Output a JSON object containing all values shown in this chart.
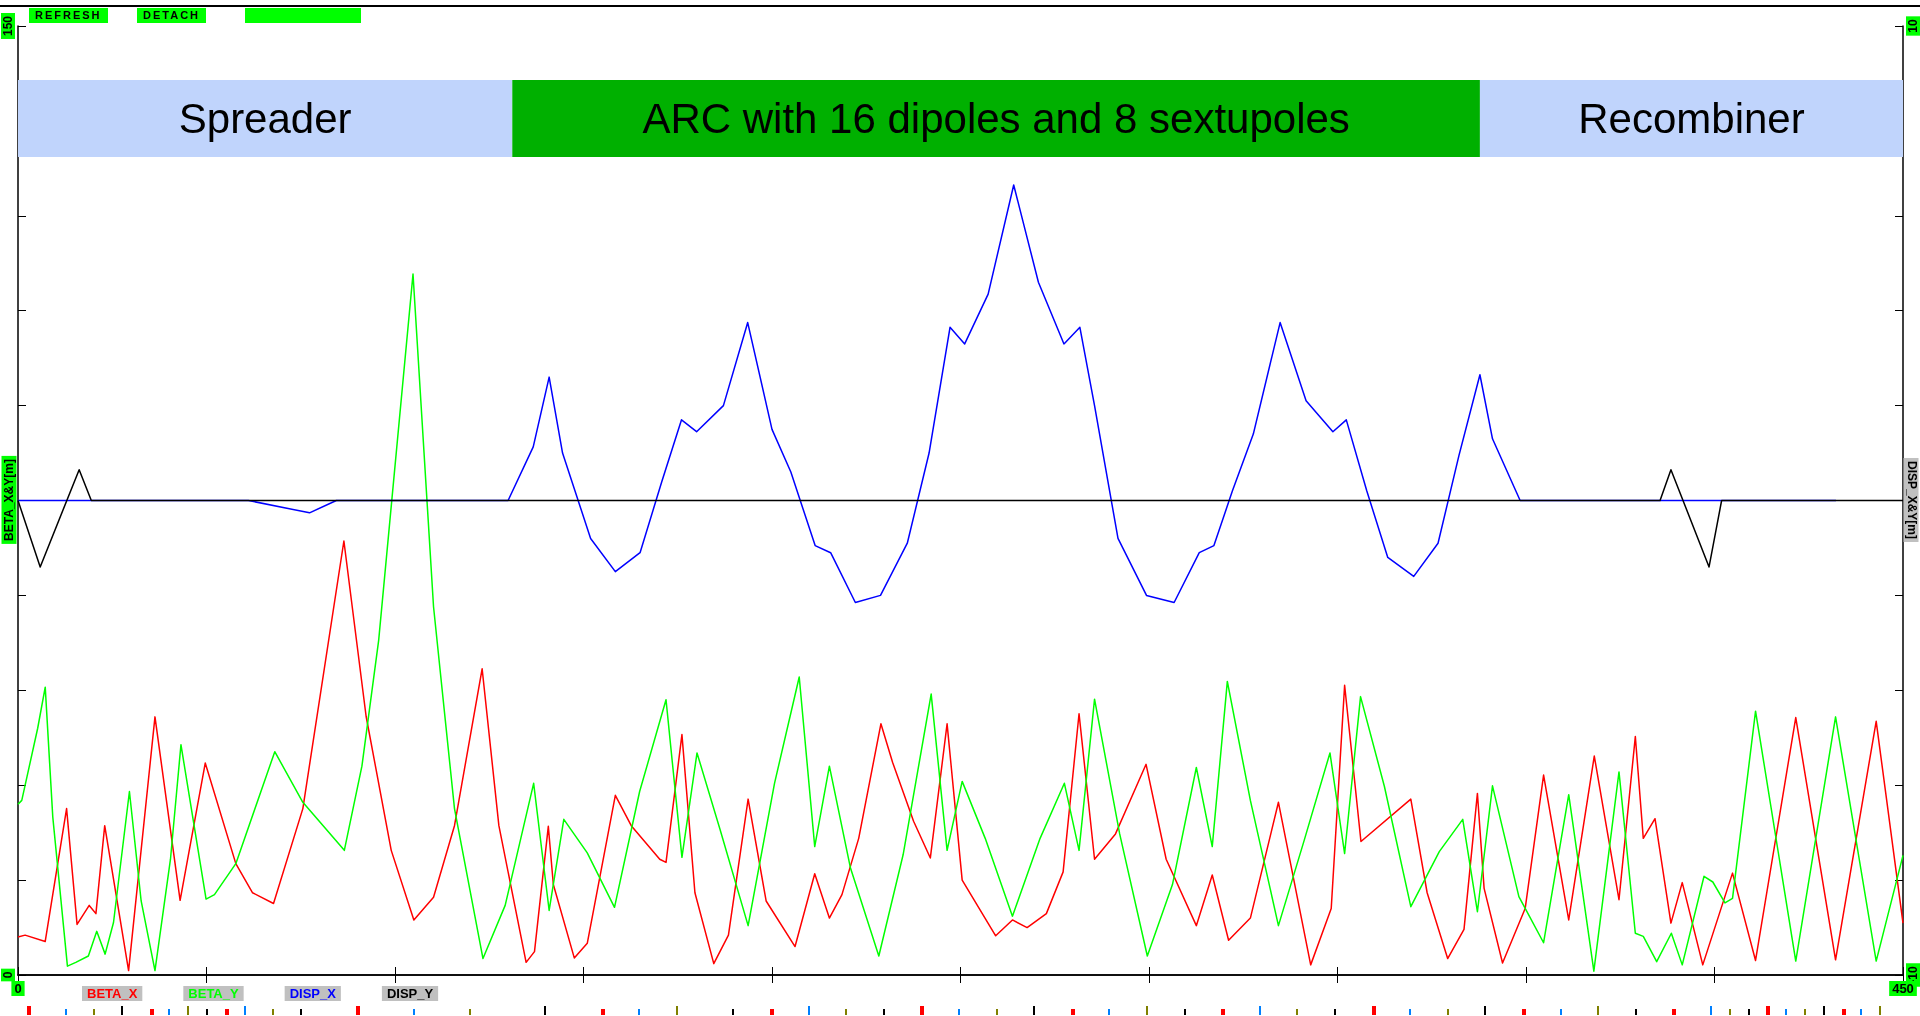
{
  "chart_data": {
    "type": "line",
    "ylabel": "BETA_X&Y[m]",
    "y2label": "DISP_X&Y[m]",
    "annotations": [
      "REFRESH",
      "DETACH"
    ],
    "xlim": [
      0,
      450
    ],
    "xticks": [
      0,
      {
        "value": 45,
        "label": null
      },
      {
        "value": 90,
        "label": null
      },
      {
        "value": 135,
        "label": null
      },
      {
        "value": 180,
        "label": null
      },
      {
        "value": 225,
        "label": null
      },
      {
        "value": 270,
        "label": null
      },
      {
        "value": 315,
        "label": null
      },
      {
        "value": 360,
        "label": null
      },
      {
        "value": 405,
        "label": null
      },
      450
    ],
    "ylim": [
      0,
      150
    ],
    "yticks": [
      0,
      {
        "value": 15,
        "label": null
      },
      {
        "value": 30,
        "label": null
      },
      {
        "value": 45,
        "label": null
      },
      {
        "value": 60,
        "label": null
      },
      {
        "value": 75,
        "label": null
      },
      {
        "value": 90,
        "label": null
      },
      {
        "value": 105,
        "label": null
      },
      {
        "value": 120,
        "label": null
      },
      {
        "value": 135,
        "label": null
      },
      150
    ],
    "y2lim": [
      -10,
      10
    ],
    "y2ticks": [
      -10,
      {
        "value": -8,
        "label": null
      },
      {
        "value": -6,
        "label": null
      },
      {
        "value": -4,
        "label": null
      },
      {
        "value": -2,
        "label": null
      },
      {
        "value": 0,
        "label": null
      },
      {
        "value": 2,
        "label": null
      },
      {
        "value": 4,
        "label": null
      },
      {
        "value": 6,
        "label": null
      },
      {
        "value": 8,
        "label": null
      },
      10
    ],
    "grid": false,
    "legend": "bottom left",
    "marker": "none",
    "line_style": "solid",
    "bands": [
      {
        "axis": "x",
        "from": 0,
        "to": 118,
        "label": "Spreader",
        "color": "#c0d4fc"
      },
      {
        "axis": "x",
        "from": 118,
        "to": 349,
        "label": "ARC with 16 dipoles and 8 sextupoles",
        "color": "#00b000"
      },
      {
        "axis": "x",
        "from": 349,
        "to": 450,
        "label": "Recombiner",
        "color": "#c0d4fc"
      }
    ],
    "series": [
      {
        "name": "BETA_X",
        "color": "#ff0000",
        "x": [
          0,
          1.7,
          6.5,
          11.6,
          14.1,
          17,
          18.6,
          20.7,
          26.4,
          32.7,
          38.7,
          44.7,
          52,
          56,
          61,
          68,
          77.8,
          83.1,
          89.1,
          94.5,
          99.2,
          104.2,
          110.8,
          114.8,
          121.3,
          123.3,
          126.6,
          127.8,
          132.8,
          135.9,
          142.6,
          146.4,
          153.2,
          154.7,
          158.5,
          161.6,
          166.1,
          169.6,
          174.3,
          178.6,
          185.5,
          190.2,
          193.7,
          196.7,
          200.7,
          206,
          208.8,
          213.8,
          217.8,
          221.8,
          225.4,
          233.4,
          237.4,
          240.9,
          245.5,
          249.5,
          253.3,
          257,
          262,
          269.3,
          274.1,
          281.3,
          285.1,
          289,
          294.2,
          300.9,
          308.6,
          313.5,
          316.7,
          320.6,
          332.5,
          336.4,
          341.3,
          345.2,
          348.4,
          350,
          354.4,
          359.8,
          364.2,
          370.2,
          376.3,
          382.2,
          386.1,
          388,
          390.8,
          394.6,
          397.3,
          402.2,
          409.3,
          414.8,
          424.4,
          433.9,
          443.6,
          450
        ],
        "values": [
          6,
          6.3,
          5.3,
          26.3,
          8,
          11,
          9.7,
          23.6,
          0.7,
          40.8,
          11.8,
          33.5,
          17.6,
          13,
          11.3,
          26.3,
          68.6,
          40.9,
          19.7,
          8.7,
          12.3,
          23.6,
          48.4,
          23.6,
          2,
          3.7,
          23.5,
          14.3,
          2.7,
          5,
          28.4,
          23.6,
          18.3,
          17.8,
          38,
          13,
          1.8,
          6.3,
          27.8,
          11.7,
          4.5,
          16,
          9,
          12.7,
          21.6,
          39.7,
          33.6,
          24.3,
          18.5,
          39.7,
          15,
          6.2,
          8.7,
          7.5,
          9.7,
          16.3,
          41.3,
          18.3,
          22.3,
          33.3,
          18.3,
          7.8,
          15.8,
          5.5,
          9,
          27.3,
          1.6,
          10.5,
          45.8,
          21.1,
          27.8,
          13,
          2.6,
          7.2,
          28.7,
          13.7,
          1.9,
          10.5,
          31.6,
          8.7,
          34.6,
          11.9,
          37.7,
          21.6,
          24.7,
          8.2,
          14.6,
          1.6,
          16.1,
          2.3,
          40.7,
          2.4,
          40.1,
          8.2
        ]
      },
      {
        "name": "BETA_Y",
        "color": "#00ff00",
        "x": [
          0,
          0.9,
          4.7,
          6.5,
          8.3,
          11.8,
          13.8,
          16.8,
          18.8,
          20.8,
          22.8,
          26.6,
          29.4,
          32.7,
          36.4,
          38.9,
          44.9,
          46.9,
          52,
          61.3,
          68,
          77.9,
          82.1,
          86.1,
          94.3,
          99.2,
          104.2,
          111,
          116.3,
          123.1,
          126.8,
          130.3,
          135.9,
          142.4,
          148.4,
          154.7,
          158.5,
          162.1,
          167.6,
          174.3,
          180.6,
          186.5,
          190.2,
          193.7,
          198.7,
          205.5,
          211.3,
          218,
          221.8,
          225.4,
          230.9,
          237.4,
          244,
          249.8,
          253.3,
          257,
          263,
          269.6,
          275.6,
          281.3,
          285.1,
          288.7,
          294.2,
          300.9,
          307.1,
          313.2,
          316.7,
          320.5,
          326.2,
          332.5,
          339.3,
          344.9,
          348.4,
          352,
          358.3,
          364.2,
          370.2,
          376.2,
          382.2,
          386.1,
          388,
          391.2,
          394.7,
          397.3,
          402.5,
          404.6,
          407.5,
          409.3,
          414.8,
          424.4,
          433.9,
          443.6,
          450
        ],
        "values": [
          27,
          27.6,
          39,
          45.5,
          25,
          1.4,
          2,
          3,
          6.9,
          3.3,
          8.3,
          29,
          11.7,
          0.7,
          18.3,
          36.4,
          12,
          12.7,
          17.6,
          35.3,
          27.3,
          19.7,
          33,
          52.9,
          110.8,
          58.2,
          26.3,
          2.6,
          11,
          30.3,
          10.2,
          24.6,
          19.3,
          10.7,
          29,
          43.5,
          18.6,
          35.1,
          23,
          7.8,
          30.3,
          47.1,
          20.3,
          33,
          17,
          3,
          19,
          44.4,
          19.7,
          30.6,
          21.6,
          9.3,
          21.6,
          30.3,
          19.7,
          43.6,
          22.3,
          3,
          14.3,
          32.8,
          20.3,
          46.4,
          27.6,
          7.8,
          21.4,
          35.1,
          19.2,
          44,
          29.8,
          10.8,
          19.5,
          24.6,
          10,
          29.9,
          12.4,
          5.1,
          28.5,
          0.6,
          32.1,
          6.6,
          6.1,
          2.1,
          6.6,
          1.6,
          15.6,
          14.7,
          11.4,
          12.1,
          41.7,
          2.2,
          40.8,
          2.2,
          18.9
        ]
      },
      {
        "name": "DISP_X",
        "color": "#0000ff",
        "axis": "y2",
        "x": [
          0,
          55,
          69.6,
          76,
          112,
          117,
          123,
          126.8,
          130,
          136.7,
          142.6,
          148.5,
          153.7,
          158.4,
          162,
          168.4,
          174.2,
          180,
          184.5,
          190.3,
          194,
          199.9,
          205.9,
          212.3,
          217.5,
          222.5,
          226,
          231.6,
          237.7,
          243.6,
          249.7,
          253.5,
          257,
          262.6,
          269.4,
          276,
          282,
          285.5,
          289.9,
          294.9,
          301.3,
          307.5,
          313.9,
          317.1,
          322,
          327,
          333.2,
          339,
          344,
          349,
          352,
          358.6,
          434
        ],
        "values": [
          0,
          0,
          -0.26,
          0,
          0,
          0,
          1.13,
          2.6,
          1,
          -0.8,
          -1.5,
          -1.1,
          0.4,
          1.7,
          1.45,
          2,
          3.75,
          1.5,
          0.6,
          -0.95,
          -1.1,
          -2.15,
          -2,
          -0.9,
          1,
          3.65,
          3.3,
          4.35,
          6.65,
          4.6,
          3.3,
          3.65,
          2,
          -0.8,
          -2,
          -2.15,
          -1.1,
          -0.95,
          0.2,
          1.4,
          3.75,
          2.1,
          1.45,
          1.7,
          0.2,
          -1.2,
          -1.6,
          -0.9,
          0.95,
          2.65,
          1.3,
          0,
          0
        ]
      },
      {
        "name": "DISP_Y",
        "color": "#000000",
        "axis": "y2",
        "x": [
          0,
          5.3,
          14.6,
          17.5,
          392,
          394.6,
          403.7,
          406.7,
          450
        ],
        "values": [
          0,
          -1.4,
          0.65,
          0,
          0,
          0.65,
          -1.4,
          0,
          0
        ]
      }
    ]
  }
}
